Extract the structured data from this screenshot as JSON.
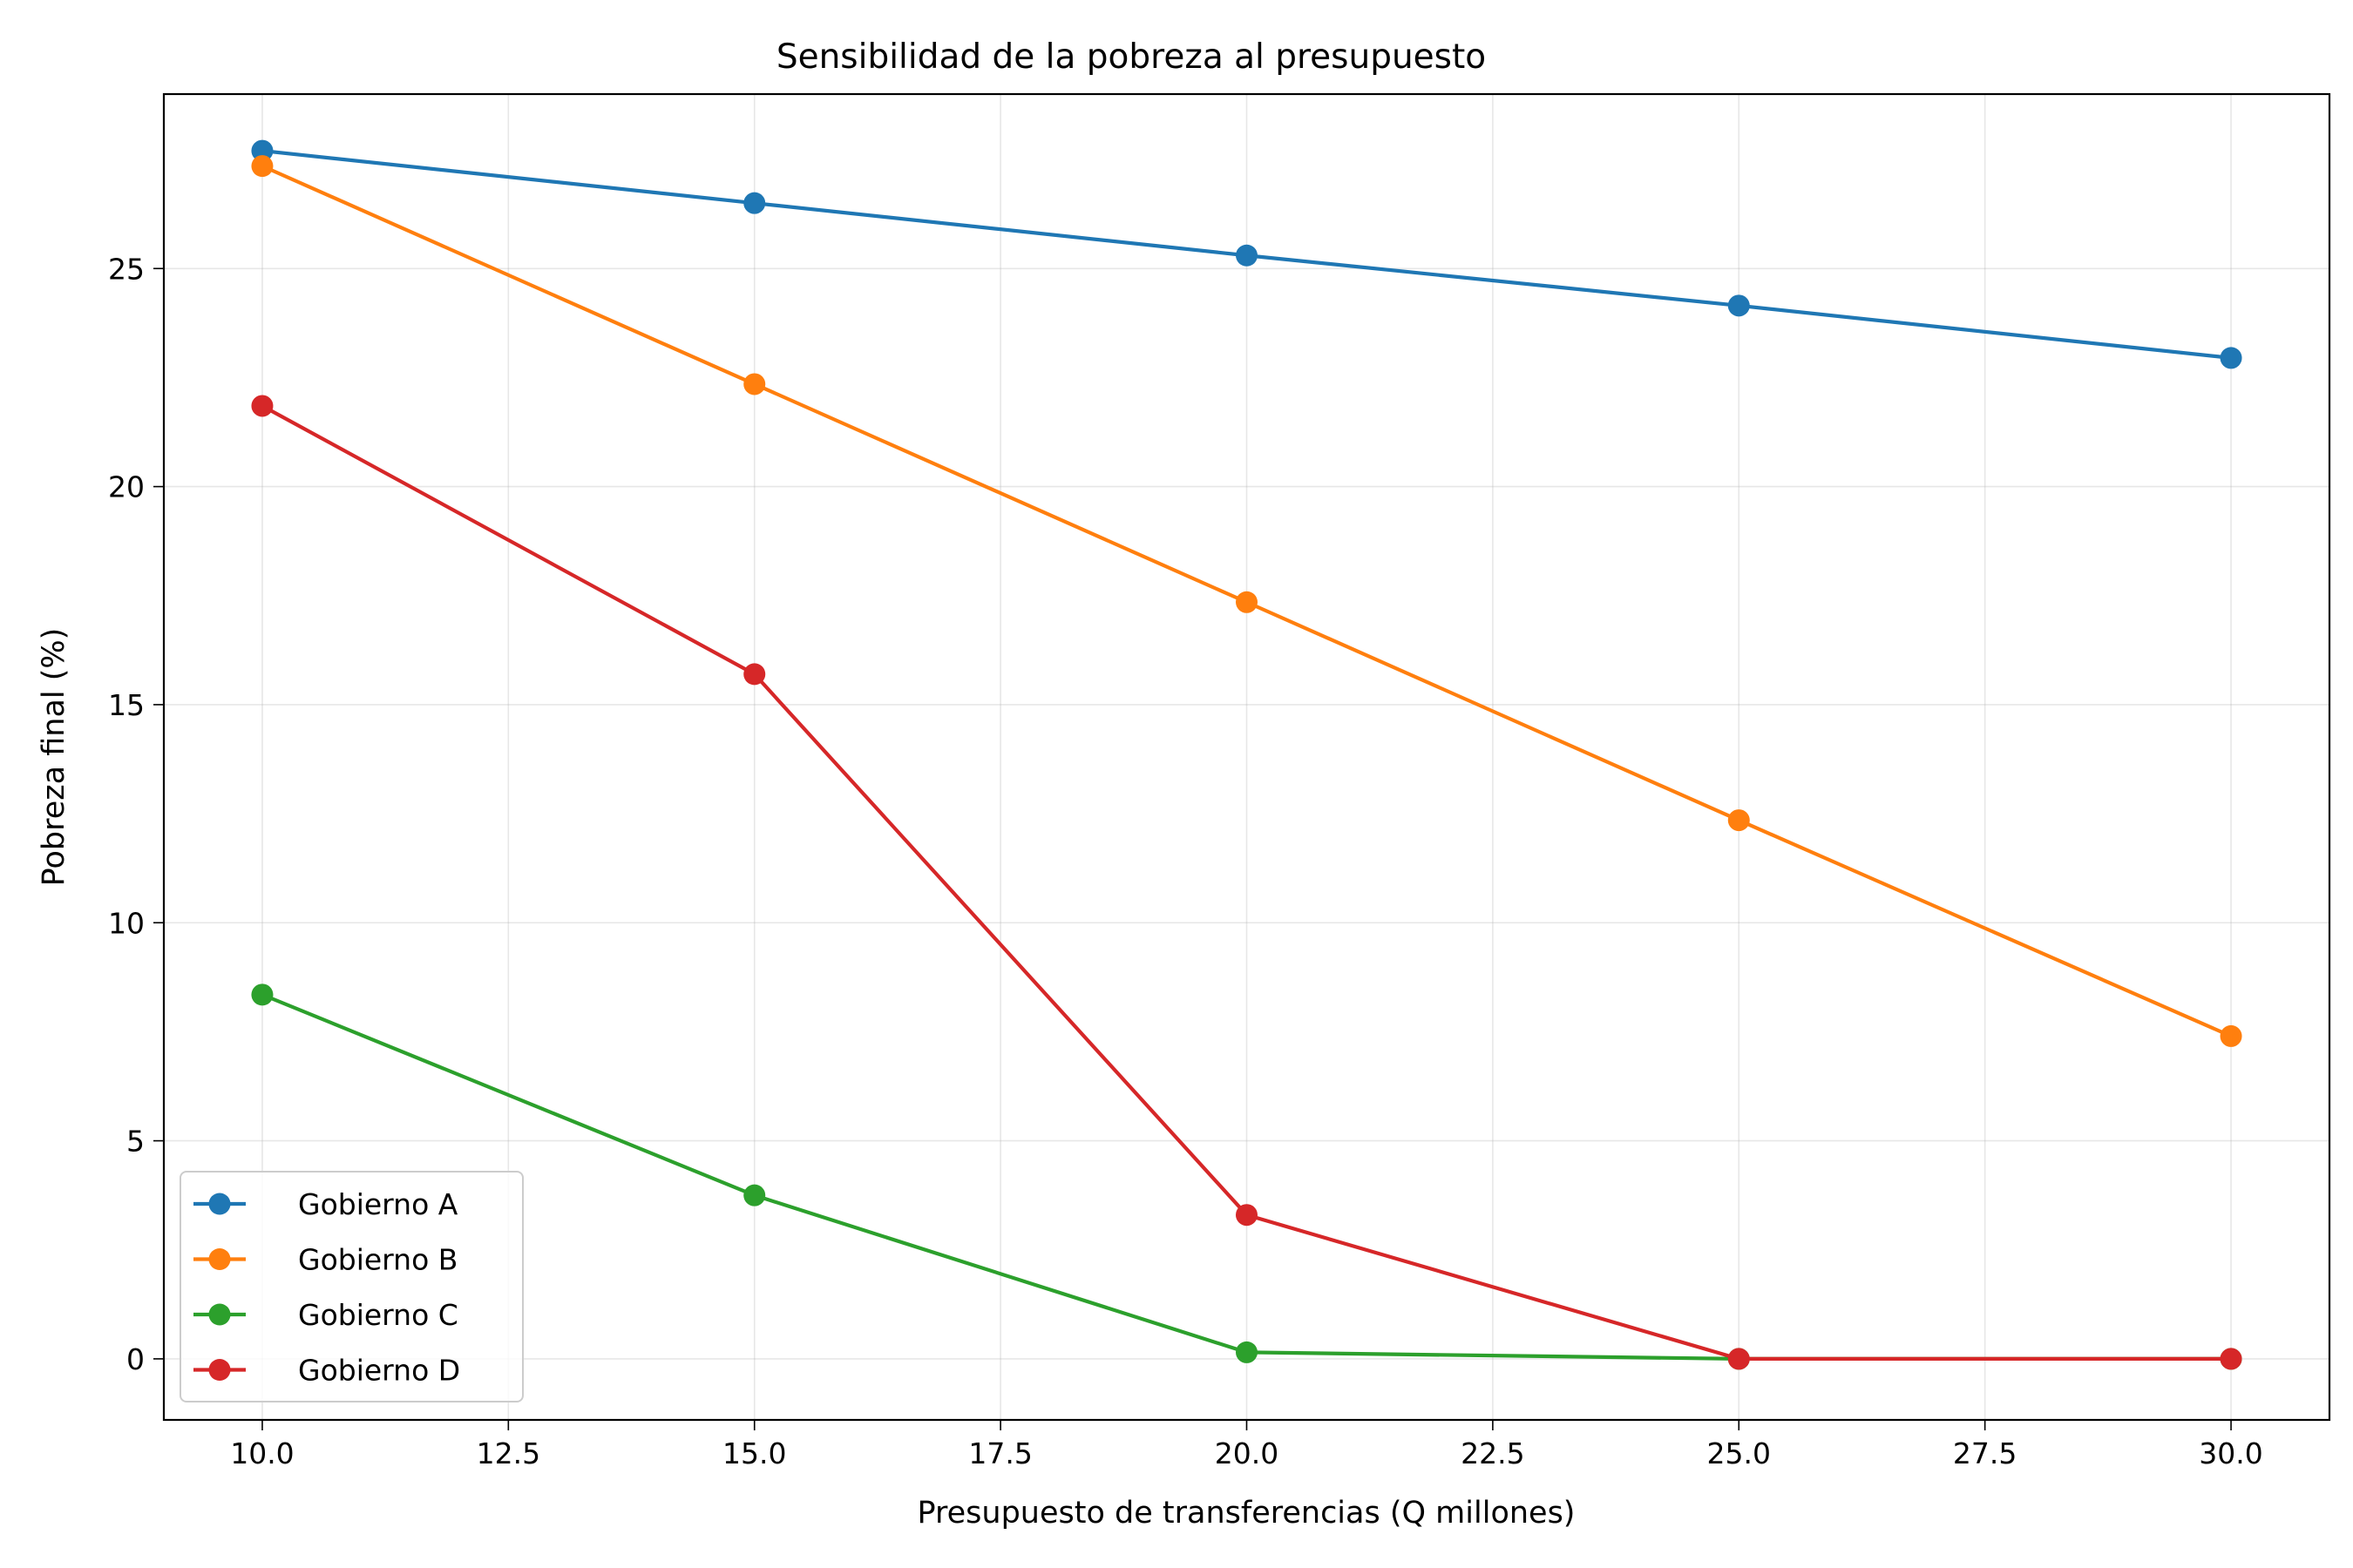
{
  "chart_data": {
    "type": "line",
    "title": "Sensibilidad de la pobreza al presupuesto",
    "xlabel": "Presupuesto de transferencias (Q millones)",
    "ylabel": "Pobreza final (%)",
    "x": [
      10,
      15,
      20,
      25,
      30
    ],
    "xlim": [
      9.0,
      31.0
    ],
    "ylim": [
      -1.4,
      29.0
    ],
    "xticks": [
      "10.0",
      "12.5",
      "15.0",
      "17.5",
      "20.0",
      "22.5",
      "25.0",
      "27.5",
      "30.0"
    ],
    "yticks": [
      "0",
      "5",
      "10",
      "15",
      "20",
      "25"
    ],
    "grid": true,
    "legend_position": "lower-left",
    "series": [
      {
        "name": "Gobierno A",
        "color": "#1f77b4",
        "values": [
          27.7,
          26.5,
          25.3,
          24.15,
          22.95
        ]
      },
      {
        "name": "Gobierno B",
        "color": "#ff7f0e",
        "values": [
          27.35,
          22.35,
          17.35,
          12.35,
          7.4
        ]
      },
      {
        "name": "Gobierno C",
        "color": "#2ca02c",
        "values": [
          8.35,
          3.75,
          0.15,
          0.0,
          0.0
        ]
      },
      {
        "name": "Gobierno D",
        "color": "#d62728",
        "values": [
          21.85,
          15.7,
          3.3,
          0.0,
          0.0
        ]
      }
    ]
  }
}
